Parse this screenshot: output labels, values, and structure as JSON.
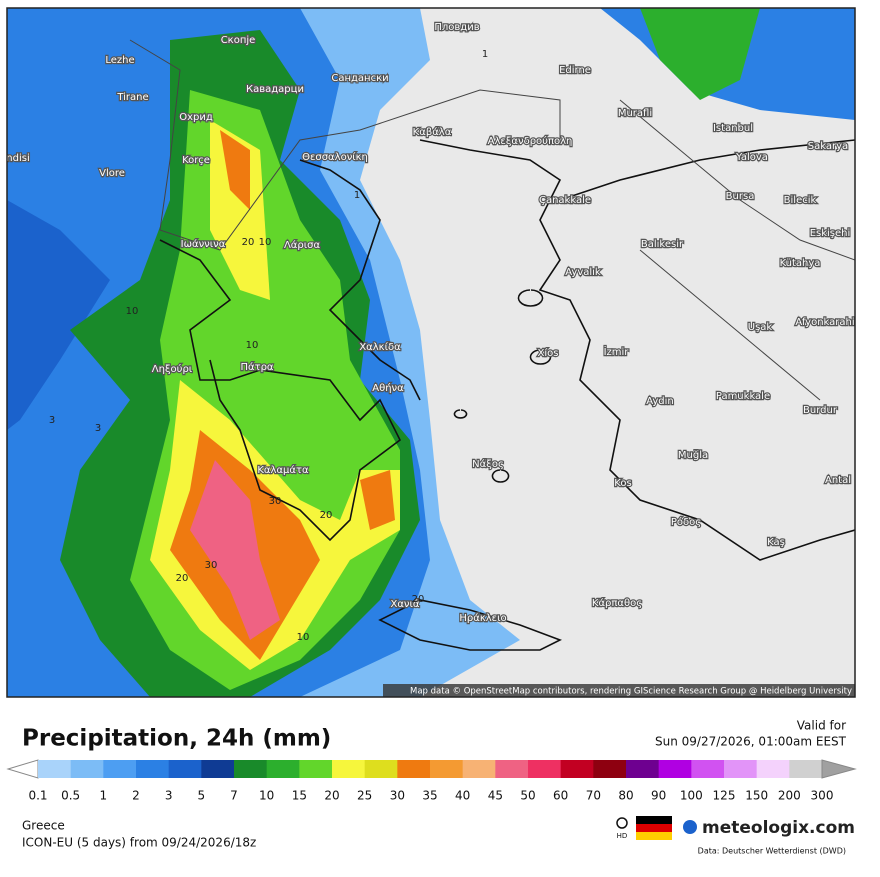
{
  "header": {
    "title": "Precipitation, 24h (mm)",
    "valid_label": "Valid for",
    "valid_time": "Sun 09/27/2026, 01:00am EEST"
  },
  "map": {
    "attribution": "Map data © OpenStreetMap contributors, rendering GIScience Research Group @ Heidelberg University",
    "cities": [
      "Скопје",
      "Пловдив",
      "Lezhe",
      "Санданcки",
      "Edirne",
      "Tirane",
      "Кавадарци",
      "Murafli",
      "Охрид",
      "Istanbul",
      "Sakarya",
      "Καβάλα",
      "Αλεξανδρούπολη",
      "Korçe",
      "Θεσσαλονίκη",
      "Yalova",
      "Vlore",
      "ndisi",
      "Bursa",
      "Bilecik",
      "Çanakkale",
      "Ιωάννινα",
      "Λάρισα",
      "Balıkesir",
      "Eskişehi",
      "Kütahya",
      "Ayvalık",
      "Uşak",
      "Afyonkarahi",
      "Χαλκίδα",
      "Xíos",
      "İzmir",
      "Ληξούρι",
      "Πάτρα",
      "Αθήνα",
      "Pamukkale",
      "Aydın",
      "Burdur",
      "Καλαμάτα",
      "Νάξος",
      "Muğla",
      "Kos",
      "Antal",
      "Ρόδος",
      "Kaş",
      "Χανιά",
      "Ηράκλειο",
      "Κάρπαθος"
    ],
    "contour_labels": [
      10,
      20,
      10,
      1,
      1,
      3,
      3,
      20,
      30,
      30,
      20,
      10,
      10,
      20
    ]
  },
  "legend": {
    "ticks": [
      0.1,
      0.5,
      1,
      2,
      3,
      5,
      7,
      10,
      15,
      20,
      25,
      30,
      35,
      40,
      45,
      50,
      60,
      70,
      80,
      90,
      100,
      125,
      150,
      200,
      300
    ],
    "colors": [
      "#a9d3fa",
      "#7cbcf6",
      "#4d9ef2",
      "#2b80e4",
      "#1b62cc",
      "#0f3b94",
      "#198a2a",
      "#2caf2d",
      "#62d62b",
      "#f6f63c",
      "#dede1e",
      "#ef7a10",
      "#f49a32",
      "#f7b274",
      "#ef6283",
      "#ee3062",
      "#c20022",
      "#8e0010",
      "#6e0090",
      "#b000e2",
      "#d152f1",
      "#e294f8",
      "#f4d2fc",
      "#d0d0d0"
    ],
    "low_color": "#ffffff",
    "high_color": "#a0a0a0"
  },
  "footer": {
    "region": "Greece",
    "model": "ICON-EU (5 days) from 09/24/2026/18z",
    "hd": "HD",
    "brand": "meteologix.com",
    "source": "Data: Deutscher Wetterdienst (DWD)"
  }
}
